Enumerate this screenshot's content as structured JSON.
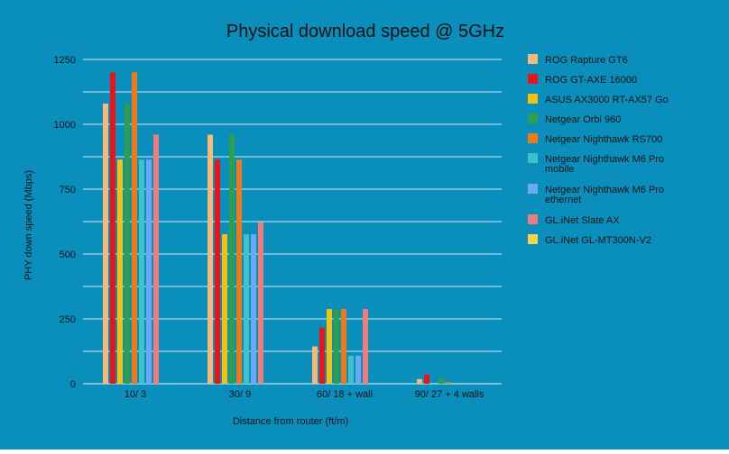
{
  "colors": {
    "background": "#0a8fbd",
    "gridline": "#cfe9f3",
    "axis": "#e8f6fb",
    "text": "#111111"
  },
  "chart_data": {
    "type": "bar",
    "title": "Physical download speed @ 5GHz",
    "xlabel": "Distance from router (ft/m)",
    "ylabel": "PHY down speed (Mbps)",
    "ylim": [
      0,
      1250
    ],
    "yticks": [
      0,
      250,
      500,
      750,
      1000,
      1250
    ],
    "minor_gridlines": true,
    "legend_position": "right",
    "categories": [
      "10/ 3",
      "30/ 9",
      "60/ 18 + wall",
      "90/ 27 + 4 walls"
    ],
    "series": [
      {
        "name": "ROG Rapture GT6",
        "color": "#f5b97a",
        "values": [
          1080,
          960,
          144,
          18
        ]
      },
      {
        "name": "ROG GT-AXE 16000",
        "color": "#e8141c",
        "values": [
          1200,
          864,
          216,
          36
        ]
      },
      {
        "name": "ASUS AX3000 RT-AX57 Go",
        "color": "#f4c20d",
        "values": [
          864,
          576,
          288,
          0
        ]
      },
      {
        "name": "Netgear Orbi 960",
        "color": "#2e9e4f",
        "values": [
          1080,
          960,
          288,
          24
        ]
      },
      {
        "name": "Netgear Nighthawk RS700",
        "color": "#f07a1a",
        "values": [
          1200,
          864,
          288,
          6
        ]
      },
      {
        "name": "Netgear Nighthawk M6 Pro mobile",
        "color": "#3fc1c9",
        "values": [
          864,
          576,
          108,
          0
        ]
      },
      {
        "name": "Netgear Nighthawk M6 Pro ethernet",
        "color": "#6aaaf5",
        "values": [
          864,
          576,
          108,
          0
        ]
      },
      {
        "name": "GL.iNet Slate AX",
        "color": "#f07c7c",
        "values": [
          960,
          624,
          288,
          0
        ]
      },
      {
        "name": "GL.iNet GL-MT300N-V2",
        "color": "#f6d54a",
        "values": [
          0,
          0,
          0,
          0
        ]
      }
    ]
  }
}
